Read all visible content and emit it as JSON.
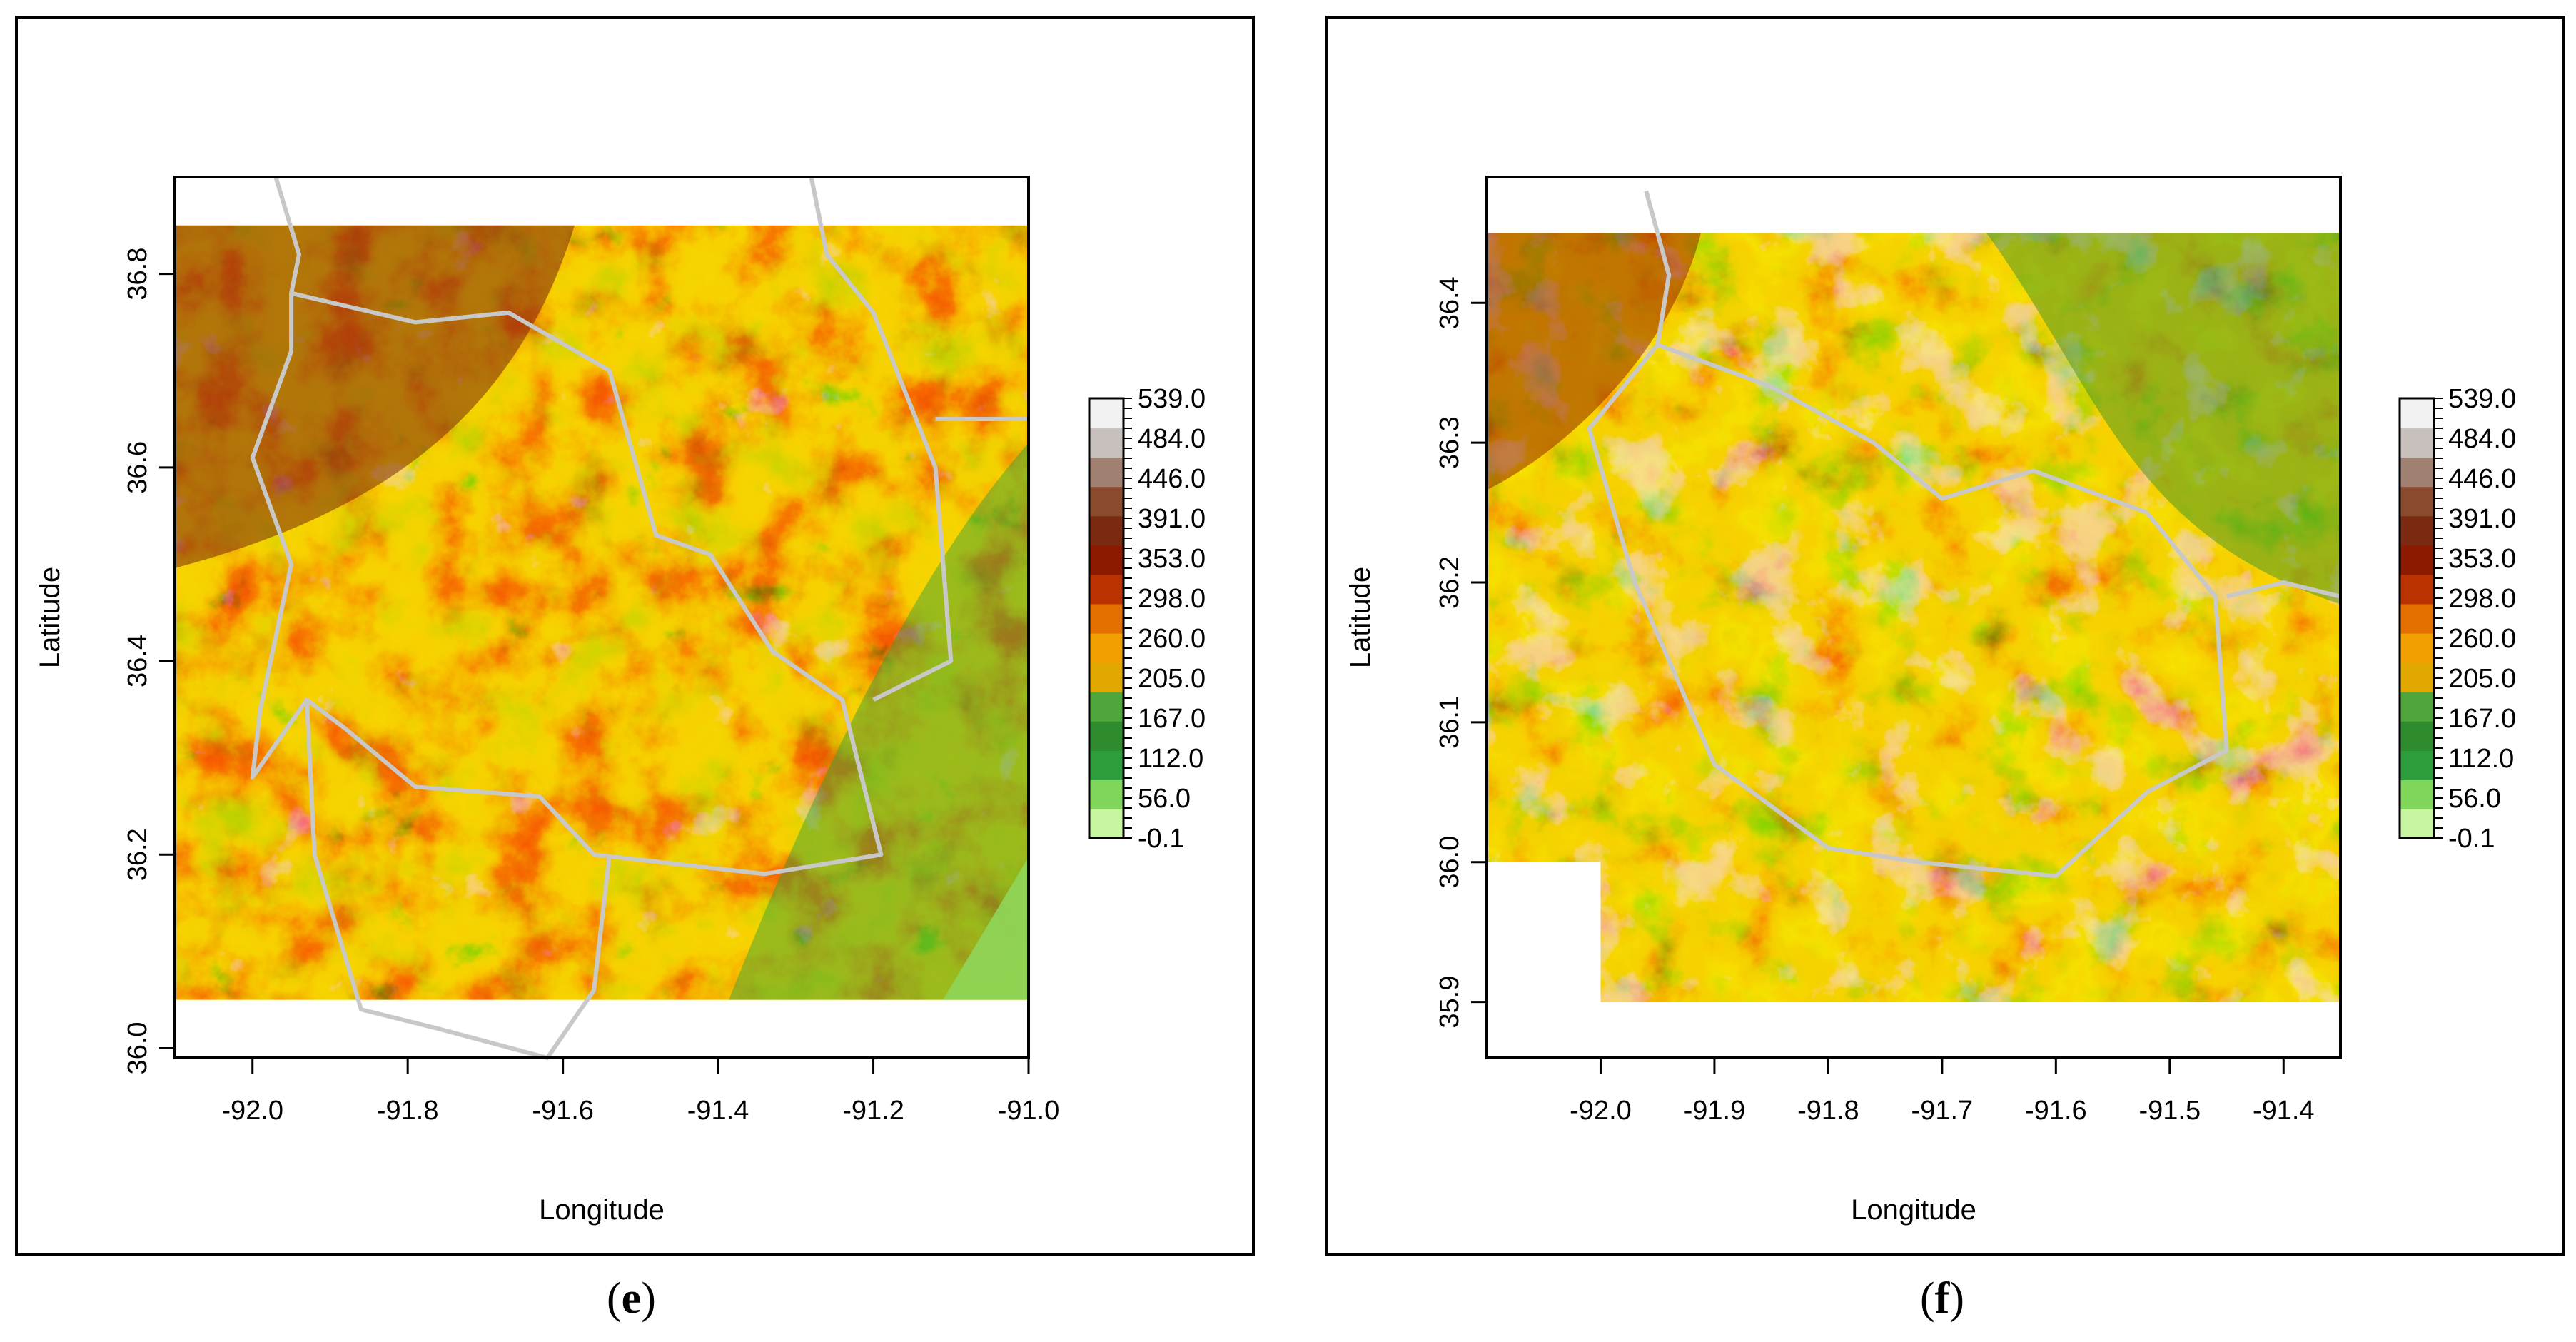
{
  "colors": {
    "ramp": [
      "#c8f5a0",
      "#7fd65a",
      "#2e9e3c",
      "#2e8b2e",
      "#4fa63a",
      "#e1a800",
      "#f0a000",
      "#e37000",
      "#b93200",
      "#8b1a00",
      "#7a2a10",
      "#8a4a2e",
      "#a08070",
      "#c8c0bc",
      "#f2f2f2"
    ],
    "boundary": "#c8c8c8",
    "frame": "#000000"
  },
  "panels": [
    {
      "id": "e",
      "label": "e",
      "xlabel": "Longitude",
      "ylabel": "Latitude",
      "xlim": [
        -92.1,
        -91.0
      ],
      "ylim": [
        35.99,
        36.9
      ],
      "raster_extent": {
        "x": [
          -92.1,
          -91.0
        ],
        "y": [
          36.05,
          36.85
        ]
      },
      "xticks": [
        "-92.0",
        "-91.8",
        "-91.6",
        "-91.4",
        "-91.2",
        "-91.0"
      ],
      "xtick_values": [
        -92.0,
        -91.8,
        -91.6,
        -91.4,
        -91.2,
        -91.0
      ],
      "yticks": [
        "36.0",
        "36.2",
        "36.4",
        "36.6",
        "36.8"
      ],
      "ytick_values": [
        36.0,
        36.2,
        36.4,
        36.6,
        36.8
      ],
      "legend_labels": [
        "539.0",
        "484.0",
        "446.0",
        "391.0",
        "353.0",
        "298.0",
        "260.0",
        "205.0",
        "167.0",
        "112.0",
        "56.0",
        "-0.1"
      ]
    },
    {
      "id": "f",
      "label": "f",
      "xlabel": "Longitude",
      "ylabel": "Latitude",
      "xlim": [
        -92.1,
        -91.35
      ],
      "ylim": [
        35.86,
        36.49
      ],
      "raster_extent": {
        "x": [
          -92.1,
          -91.35
        ],
        "y": [
          35.9,
          36.45
        ]
      },
      "xticks": [
        "-92.0",
        "-91.9",
        "-91.8",
        "-91.7",
        "-91.6",
        "-91.5",
        "-91.4"
      ],
      "xtick_values": [
        -92.0,
        -91.9,
        -91.8,
        -91.7,
        -91.6,
        -91.5,
        -91.4
      ],
      "yticks": [
        "35.9",
        "36.0",
        "36.1",
        "36.2",
        "36.3",
        "36.4"
      ],
      "ytick_values": [
        35.9,
        36.0,
        36.1,
        36.2,
        36.3,
        36.4
      ],
      "legend_labels": [
        "539.0",
        "484.0",
        "446.0",
        "391.0",
        "353.0",
        "298.0",
        "260.0",
        "205.0",
        "167.0",
        "112.0",
        "56.0",
        "-0.1"
      ]
    }
  ]
}
